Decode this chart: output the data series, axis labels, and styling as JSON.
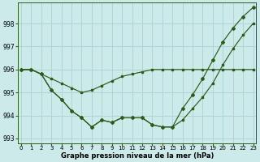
{
  "xlabel": "Graphe pression niveau de la mer (hPa)",
  "background_color": "#cdeaea",
  "grid_color": "#aed4d4",
  "line_color": "#2d5a1b",
  "ylim": [
    992.8,
    998.9
  ],
  "yticks": [
    993,
    994,
    995,
    996,
    997,
    998
  ],
  "xlim": [
    -0.3,
    23.3
  ],
  "xticks": [
    0,
    1,
    2,
    3,
    4,
    5,
    6,
    7,
    8,
    9,
    10,
    11,
    12,
    13,
    14,
    15,
    16,
    17,
    18,
    19,
    20,
    21,
    22,
    23
  ],
  "series1": [
    996.0,
    996.0,
    995.8,
    995.6,
    995.4,
    995.2,
    995.0,
    995.1,
    995.3,
    995.5,
    995.7,
    995.8,
    995.9,
    996.0,
    996.0,
    996.0,
    996.0,
    996.0,
    996.0,
    996.0,
    996.0,
    996.0,
    996.0,
    996.0
  ],
  "series2": [
    996.0,
    996.0,
    995.8,
    995.1,
    994.7,
    994.2,
    993.9,
    993.5,
    993.8,
    993.7,
    993.9,
    993.9,
    993.9,
    993.6,
    993.5,
    993.5,
    993.8,
    994.3,
    994.8,
    995.4,
    996.2,
    996.9,
    997.5,
    998.0
  ],
  "series3": [
    996.0,
    996.0,
    995.8,
    995.1,
    994.7,
    994.2,
    993.9,
    993.5,
    993.8,
    993.7,
    993.9,
    993.9,
    993.9,
    993.6,
    993.5,
    993.5,
    994.3,
    994.9,
    995.6,
    996.4,
    997.2,
    997.8,
    998.3,
    998.7
  ]
}
